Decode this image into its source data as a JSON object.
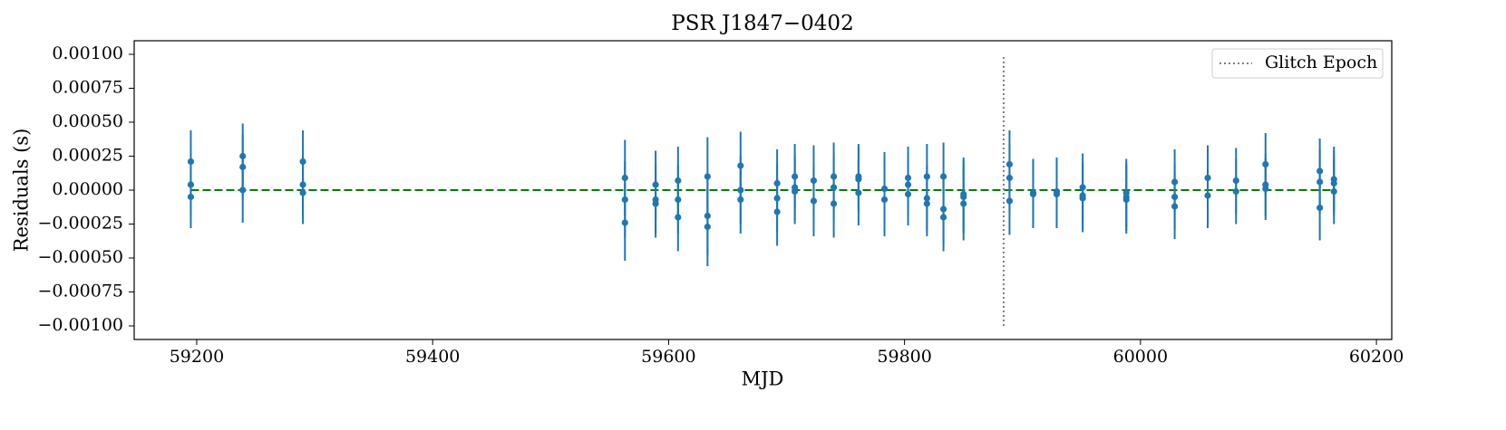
{
  "chart_data": {
    "type": "errorbar",
    "title": "PSR J1847−0402",
    "x_label": "MJD",
    "y_label": "Residuals (s)",
    "xlim": [
      59147,
      60213
    ],
    "ylim": [
      -0.0011,
      0.0011
    ],
    "xticks": [
      59200,
      59400,
      59600,
      59800,
      60000,
      60200
    ],
    "yticks": [
      {
        "value": 0.001,
        "label": "0.00100"
      },
      {
        "value": 0.00075,
        "label": "0.00075"
      },
      {
        "value": 0.0005,
        "label": "0.00050"
      },
      {
        "value": 0.00025,
        "label": "0.00025"
      },
      {
        "value": 0,
        "label": "0.00000"
      },
      {
        "value": -0.00025,
        "label": "−0.00025"
      },
      {
        "value": -0.0005,
        "label": "−0.00050"
      },
      {
        "value": -0.00075,
        "label": "−0.00075"
      },
      {
        "value": -0.001,
        "label": "−0.00100"
      }
    ],
    "grid": false,
    "legend_position": "upper right",
    "points": {
      "color": "#1f77b4",
      "x": [
        59195,
        59195,
        59195,
        59239,
        59239,
        59239,
        59290,
        59290,
        59290,
        59563,
        59563,
        59563,
        59589,
        59589,
        59589,
        59608,
        59608,
        59608,
        59633,
        59633,
        59633,
        59661,
        59661,
        59661,
        59692,
        59692,
        59692,
        59707,
        59707,
        59707,
        59723,
        59723,
        59740,
        59740,
        59740,
        59761,
        59761,
        59761,
        59783,
        59783,
        59803,
        59803,
        59803,
        59819,
        59819,
        59819,
        59833,
        59833,
        59833,
        59850,
        59850,
        59850,
        59889,
        59889,
        59889,
        59909,
        59909,
        59929,
        59929,
        59951,
        59951,
        59951,
        59988,
        59988,
        59988,
        60029,
        60029,
        60029,
        60057,
        60057,
        60081,
        60081,
        60106,
        60106,
        60106,
        60152,
        60152,
        60152,
        60164,
        60164,
        60164
      ],
      "values": [
        0.00021,
        4e-05,
        -5e-05,
        0.00025,
        0.00017,
        0.0,
        0.00021,
        4e-05,
        -2e-05,
        9e-05,
        -7e-05,
        -0.00024,
        4e-05,
        -7e-05,
        -0.0001,
        7e-05,
        -7e-05,
        -0.0002,
        0.0001,
        -0.00019,
        -0.00027,
        0.00018,
        0.0,
        -7e-05,
        5e-05,
        -6e-05,
        -0.00016,
        0.0001,
        2e-05,
        -1e-05,
        7e-05,
        -8e-05,
        0.0001,
        2e-05,
        -0.0001,
        0.0001,
        8e-05,
        -2e-05,
        1e-05,
        -7e-05,
        9e-05,
        4e-05,
        -3e-05,
        0.0001,
        -6e-05,
        -0.0001,
        0.0001,
        -0.00014,
        -0.0002,
        -3e-05,
        -0.0001,
        -5e-05,
        0.00019,
        9e-05,
        -8e-05,
        -2e-05,
        -3e-05,
        -1e-05,
        -3e-05,
        2e-05,
        -4e-05,
        -6e-05,
        -2e-05,
        -5e-05,
        -7e-05,
        6e-05,
        -5e-05,
        -0.00012,
        9e-05,
        -4e-05,
        7e-05,
        -1e-05,
        0.00019,
        4e-05,
        1e-05,
        0.00014,
        6e-05,
        -0.00013,
        8e-05,
        5e-05,
        -1e-05
      ],
      "errors": [
        0.00023,
        0.00023,
        0.00023,
        0.00024,
        0.00024,
        0.00024,
        0.00023,
        0.00023,
        0.00023,
        0.00028,
        0.00028,
        0.00028,
        0.00025,
        0.00025,
        0.00025,
        0.00025,
        0.00025,
        0.00025,
        0.00029,
        0.00029,
        0.00029,
        0.00025,
        0.00025,
        0.00025,
        0.00025,
        0.00025,
        0.00025,
        0.00024,
        0.00024,
        0.00024,
        0.00026,
        0.00026,
        0.00025,
        0.00025,
        0.00025,
        0.00024,
        0.00024,
        0.00024,
        0.00027,
        0.00027,
        0.00023,
        0.00023,
        0.00023,
        0.00024,
        0.00024,
        0.00024,
        0.00025,
        0.00025,
        0.00025,
        0.00027,
        0.00027,
        0.00027,
        0.00025,
        0.00025,
        0.00025,
        0.00025,
        0.00025,
        0.00025,
        0.00025,
        0.00025,
        0.00025,
        0.00025,
        0.00025,
        0.00025,
        0.00025,
        0.00024,
        0.00024,
        0.00024,
        0.00024,
        0.00024,
        0.00024,
        0.00024,
        0.00023,
        0.00023,
        0.00023,
        0.00024,
        0.00024,
        0.00024,
        0.00024,
        0.00024,
        0.00024
      ]
    },
    "fit_line": {
      "color": "#008000",
      "style": "dashed",
      "x": [
        59195,
        60164
      ],
      "values": [
        0,
        0
      ]
    },
    "glitch": {
      "name": "Glitch Epoch",
      "color": "#808080",
      "style": "dotted",
      "x": 59884,
      "y": [
        -0.001,
        0.001
      ]
    }
  }
}
